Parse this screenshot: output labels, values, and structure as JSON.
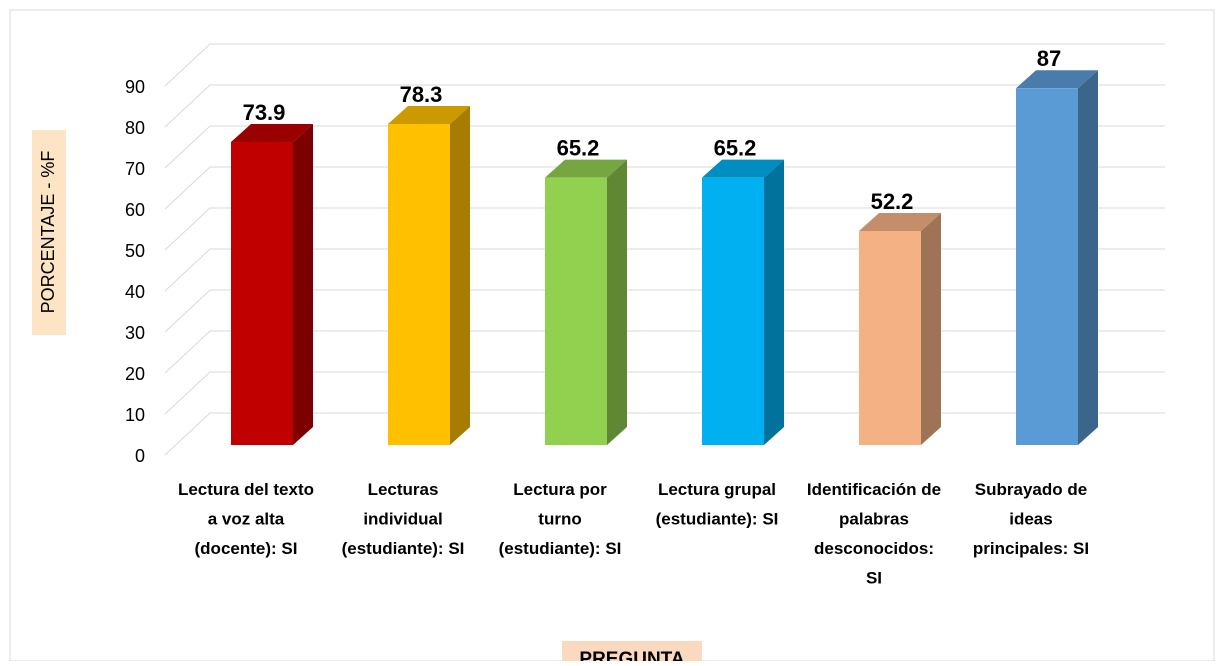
{
  "chart_data": {
    "type": "bar3d",
    "categories": [
      "Lectura del texto a voz alta (docente): SI",
      "Lecturas individual (estudiante): SI",
      "Lectura por turno (estudiante): SI",
      "Lectura grupal (estudiante): SI",
      "Identificación de palabras desconocidos: SI",
      "Subrayado de ideas principales:  SI"
    ],
    "values": [
      73.9,
      78.3,
      65.2,
      65.2,
      52.2,
      87
    ],
    "colors": [
      "#c00000",
      "#ffc000",
      "#92d050",
      "#00b0f0",
      "#f4b183",
      "#5b9bd5"
    ],
    "ylim": [
      0,
      90
    ],
    "yticks": [
      0,
      10,
      20,
      30,
      40,
      50,
      60,
      70,
      80,
      90
    ],
    "ylabel": "PORCENTAJE - %F",
    "xlabel": "PREGUNTA",
    "grid": true
  }
}
